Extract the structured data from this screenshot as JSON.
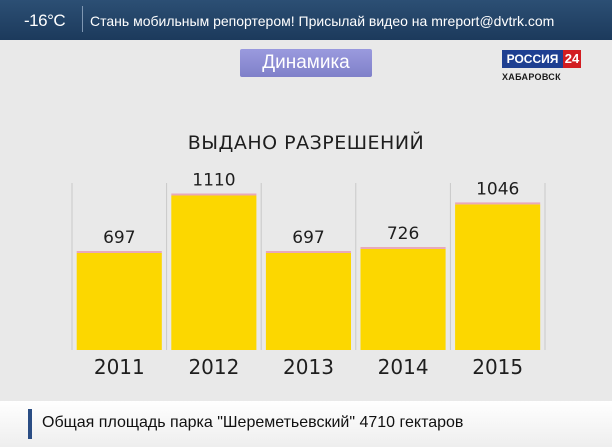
{
  "top_bar": {
    "temperature": "-16°C",
    "ticker": "Стань мобильным репортером! Присылай видео на mreport@dvtrk.com"
  },
  "section_label": "Динамика",
  "logo": {
    "name": "РОССИЯ",
    "number": "24",
    "city": "ХАБАРОВСК",
    "colors": {
      "blue": "#1e3f91",
      "red": "#d21d22"
    }
  },
  "chart_data": {
    "type": "bar",
    "title": "ВЫДАНО РАЗРЕШЕНИЙ",
    "categories": [
      "2011",
      "2012",
      "2013",
      "2014",
      "2015"
    ],
    "values": [
      697,
      1110,
      697,
      726,
      1046
    ],
    "data_labels": [
      "697",
      "1110",
      "697",
      "726",
      "1046"
    ],
    "xlabel": "",
    "ylabel": "",
    "ylim": [
      0,
      1200
    ],
    "grid": true,
    "legend": "none",
    "bar_color": "#fcd700"
  },
  "bottom_bar": {
    "ticker": "Общая площадь парка \"Шереметьевский\" 4710 гектаров"
  }
}
